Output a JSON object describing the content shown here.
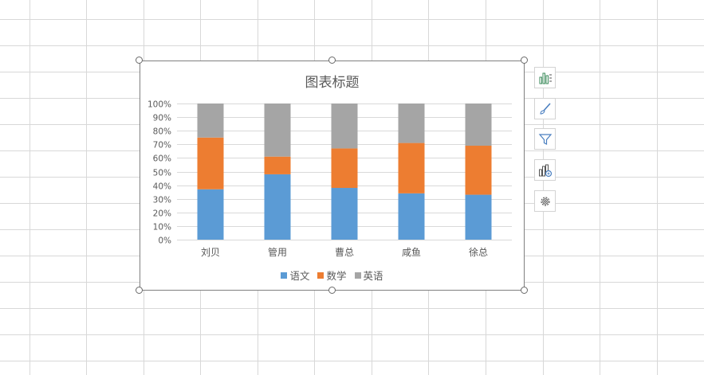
{
  "chart_data": {
    "type": "bar",
    "stacked": "percent",
    "title": "图表标题",
    "categories": [
      "刘贝",
      "管用",
      "曹总",
      "咸鱼",
      "徐总"
    ],
    "series": [
      {
        "name": "语文",
        "color": "#5b9bd5",
        "values": [
          37,
          48,
          38,
          34,
          33
        ]
      },
      {
        "name": "数学",
        "color": "#ed7d31",
        "values": [
          38,
          13,
          29,
          37,
          36
        ]
      },
      {
        "name": "英语",
        "color": "#a5a5a5",
        "values": [
          25,
          39,
          33,
          29,
          31
        ]
      }
    ],
    "y_ticks": [
      "0%",
      "10%",
      "20%",
      "30%",
      "40%",
      "50%",
      "60%",
      "70%",
      "80%",
      "90%",
      "100%"
    ],
    "ylim": [
      0,
      100
    ],
    "grid": true,
    "legend_position": "bottom"
  },
  "side_buttons": [
    {
      "name": "chart-elements-button",
      "icon": "chart-elements-icon"
    },
    {
      "name": "chart-styles-button",
      "icon": "brush-icon"
    },
    {
      "name": "chart-filter-button",
      "icon": "filter-icon"
    },
    {
      "name": "chart-type-button",
      "icon": "chart-type-icon"
    },
    {
      "name": "chart-settings-button",
      "icon": "gear-icon"
    }
  ]
}
